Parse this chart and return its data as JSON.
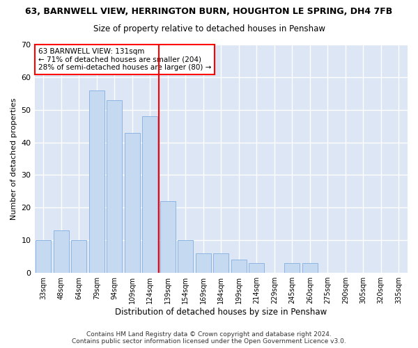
{
  "title": "63, BARNWELL VIEW, HERRINGTON BURN, HOUGHTON LE SPRING, DH4 7FB",
  "subtitle": "Size of property relative to detached houses in Penshaw",
  "xlabel": "Distribution of detached houses by size in Penshaw",
  "ylabel": "Number of detached properties",
  "footer_line1": "Contains HM Land Registry data © Crown copyright and database right 2024.",
  "footer_line2": "Contains public sector information licensed under the Open Government Licence v3.0.",
  "annotation_line1": "63 BARNWELL VIEW: 131sqm",
  "annotation_line2": "← 71% of detached houses are smaller (204)",
  "annotation_line3": "28% of semi-detached houses are larger (80) →",
  "categories": [
    "33sqm",
    "48sqm",
    "64sqm",
    "79sqm",
    "94sqm",
    "109sqm",
    "124sqm",
    "139sqm",
    "154sqm",
    "169sqm",
    "184sqm",
    "199sqm",
    "214sqm",
    "229sqm",
    "245sqm",
    "260sqm",
    "275sqm",
    "290sqm",
    "305sqm",
    "320sqm",
    "335sqm"
  ],
  "values": [
    10,
    13,
    10,
    56,
    53,
    43,
    48,
    22,
    10,
    6,
    6,
    4,
    3,
    0,
    3,
    3,
    0,
    0,
    0,
    0,
    0
  ],
  "bar_color": "#c5d9f0",
  "bar_edge_color": "#8db4e2",
  "red_line_x": 7.0,
  "bg_color": "#ffffff",
  "plot_bg_color": "#dce6f5",
  "grid_color": "#ffffff",
  "ylim": [
    0,
    70
  ],
  "yticks": [
    0,
    10,
    20,
    30,
    40,
    50,
    60,
    70
  ],
  "title_fontsize": 9,
  "subtitle_fontsize": 8.5,
  "ylabel_fontsize": 8,
  "xlabel_fontsize": 8.5,
  "annotation_fontsize": 7.5,
  "footer_fontsize": 6.5
}
